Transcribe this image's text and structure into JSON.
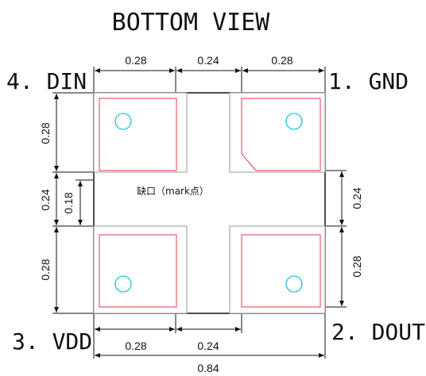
{
  "title": "BOTTOM VIEW",
  "pins": {
    "p1": "1. GND",
    "p2": "2. DOUT",
    "p3": "3. VDD",
    "p4": "4. DIN"
  },
  "note": "缺口（mark点）",
  "dimensions": {
    "top_left": "0.28",
    "top_mid": "0.24",
    "top_right": "0.28",
    "bottom_left": "0.28",
    "bottom_mid": "0.24",
    "overall_width": "0.84",
    "left_top": "0.28",
    "left_mid": "0.24",
    "left_inner": "0.18",
    "left_bottom": "0.28",
    "right_mid": "0.24",
    "right_bottom": "0.28"
  },
  "colors": {
    "package_outline": "#222222",
    "pad_outline": "#999999",
    "pad_inner": "#e8394a",
    "mark_dot": "#18c4d8"
  }
}
